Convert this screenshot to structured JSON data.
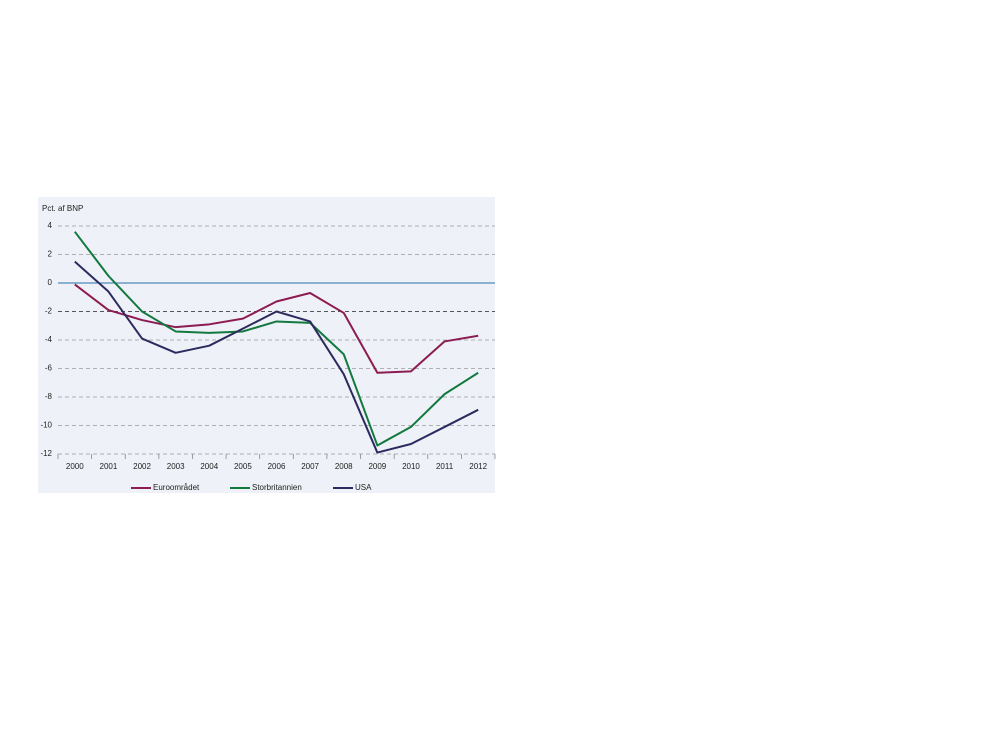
{
  "chart_data": {
    "type": "line",
    "y_label": "Pct. af BNP",
    "categories": [
      "2000",
      "2001",
      "2002",
      "2003",
      "2004",
      "2005",
      "2006",
      "2007",
      "2008",
      "2009",
      "2010",
      "2011",
      "2012"
    ],
    "series": [
      {
        "name": "Euroområdet",
        "color": "#8c1c52",
        "values": [
          -0.1,
          -1.9,
          -2.6,
          -3.1,
          -2.9,
          -2.5,
          -1.3,
          -0.7,
          -2.1,
          -6.3,
          -6.2,
          -4.1,
          -3.7
        ]
      },
      {
        "name": "Storbritannien",
        "color": "#12793f",
        "values": [
          3.6,
          0.5,
          -2.0,
          -3.4,
          -3.5,
          -3.4,
          -2.7,
          -2.8,
          -5.0,
          -11.4,
          -10.1,
          -7.8,
          -6.3
        ]
      },
      {
        "name": "USA",
        "color": "#2c2a5e",
        "values": [
          1.5,
          -0.6,
          -3.9,
          -4.9,
          -4.4,
          -3.2,
          -2.0,
          -2.7,
          -6.4,
          -11.9,
          -11.3,
          -10.1,
          -8.9
        ]
      }
    ],
    "ylim": [
      -12,
      4
    ],
    "yticks": [
      -12,
      -10,
      -8,
      -6,
      -4,
      -2,
      0,
      2,
      4
    ],
    "grid": true,
    "reference_line": -2
  }
}
